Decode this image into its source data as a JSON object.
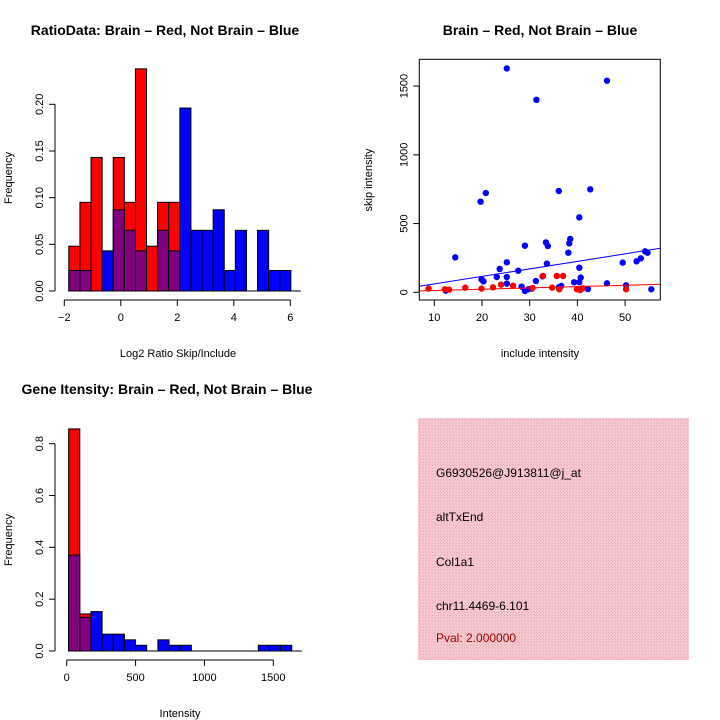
{
  "colors": {
    "red": "#ff0000",
    "blue": "#0000ff",
    "overlap": "#800080",
    "panel": "#f3c3cc",
    "pval": "#990000"
  },
  "chart_data": [
    {
      "type": "bar",
      "title": "RatioData: Brain – Red, Not Brain – Blue",
      "xlabel": "Log2 Ratio Skip/Include",
      "ylabel": "Frequency",
      "xlim": [
        -2,
        6
      ],
      "ylim": [
        0,
        0.24
      ],
      "xticks": [
        "−2",
        "0",
        "2",
        "4",
        "6"
      ],
      "xtick_values": [
        -2,
        0,
        2,
        4,
        6
      ],
      "yticks": [
        "0.00",
        "0.05",
        "0.10",
        "0.15",
        "0.20"
      ],
      "ytick_values": [
        0,
        0.05,
        0.1,
        0.15,
        0.2
      ],
      "bin_start": -1.84,
      "bin_width": 0.393,
      "series": [
        {
          "name": "Brain",
          "color": "red",
          "values": [
            0.048,
            0.095,
            0.143,
            0,
            0.143,
            0.095,
            0.238,
            0.048,
            0.095,
            0.095,
            0,
            0,
            0,
            0,
            0,
            0,
            0,
            0,
            0,
            0
          ]
        },
        {
          "name": "Not Brain",
          "color": "blue",
          "values": [
            0.022,
            0.022,
            0,
            0.043,
            0.087,
            0.065,
            0.043,
            0,
            0.065,
            0.043,
            0.196,
            0.065,
            0.065,
            0.087,
            0.022,
            0.065,
            0,
            0.065,
            0.022,
            0.022
          ]
        }
      ]
    },
    {
      "type": "scatter",
      "title": "Brain – Red, Not Brain – Blue",
      "xlabel": "include intensity",
      "ylabel": "skip intensity",
      "xlim": [
        6.9,
        57.4
      ],
      "ylim": [
        -56,
        1695
      ],
      "xticks": [
        "10",
        "20",
        "30",
        "40",
        "50"
      ],
      "xtick_values": [
        10,
        20,
        30,
        40,
        50
      ],
      "yticks": [
        "0",
        "500",
        "1000",
        "1500"
      ],
      "ytick_values": [
        0,
        500,
        1000,
        1500
      ],
      "series": [
        {
          "name": "Not Brain",
          "color": "blue",
          "points": [
            [
              25.2,
              1628
            ],
            [
              46.2,
              1539
            ],
            [
              31.4,
              1400
            ],
            [
              36.1,
              737
            ],
            [
              42.7,
              749
            ],
            [
              19.7,
              659
            ],
            [
              20.8,
              722
            ],
            [
              40.4,
              545
            ],
            [
              14.4,
              254
            ],
            [
              29.0,
              339
            ],
            [
              33.4,
              363
            ],
            [
              33.8,
              337
            ],
            [
              38.5,
              388
            ],
            [
              38.3,
              356
            ],
            [
              38.1,
              288
            ],
            [
              33.6,
              208
            ],
            [
              25.2,
              218
            ],
            [
              23.7,
              170
            ],
            [
              27.6,
              157
            ],
            [
              23.1,
              111
            ],
            [
              25.2,
              111
            ],
            [
              19.9,
              94
            ],
            [
              20.3,
              80
            ],
            [
              25.2,
              63
            ],
            [
              31.3,
              82
            ],
            [
              32.7,
              116
            ],
            [
              40.4,
              179
            ],
            [
              40.7,
              107
            ],
            [
              39.3,
              73
            ],
            [
              40.4,
              73
            ],
            [
              36.6,
              46
            ],
            [
              36.1,
              36
            ],
            [
              42.2,
              24
            ],
            [
              46.2,
              65
            ],
            [
              49.5,
              216
            ],
            [
              50.2,
              51
            ],
            [
              52.4,
              225
            ],
            [
              53.3,
              247
            ],
            [
              54.2,
              298
            ],
            [
              54.7,
              288
            ],
            [
              55.5,
              22
            ],
            [
              12.4,
              12
            ],
            [
              28.3,
              41
            ],
            [
              29.0,
              10
            ],
            [
              29.7,
              22
            ],
            [
              30.4,
              27
            ]
          ],
          "fit_line": [
            [
              6.9,
              44
            ],
            [
              57.4,
              320
            ]
          ]
        },
        {
          "name": "Brain",
          "color": "red",
          "points": [
            [
              8.8,
              27
            ],
            [
              12.2,
              22
            ],
            [
              13.1,
              19
            ],
            [
              16.5,
              34
            ],
            [
              19.9,
              27
            ],
            [
              22.3,
              36
            ],
            [
              24.0,
              56
            ],
            [
              26.5,
              48
            ],
            [
              30.6,
              31
            ],
            [
              32.8,
              119
            ],
            [
              34.7,
              34
            ],
            [
              35.7,
              119
            ],
            [
              37.0,
              119
            ],
            [
              36.2,
              22
            ],
            [
              39.9,
              22
            ],
            [
              40.6,
              17
            ],
            [
              41.1,
              29
            ],
            [
              50.2,
              22
            ]
          ],
          "fit_line": [
            [
              6.9,
              10
            ],
            [
              57.4,
              58
            ]
          ]
        }
      ]
    },
    {
      "type": "bar",
      "title": "Gene Itensity: Brain – Red, Not Brain – Blue",
      "xlabel": "Intensity",
      "ylabel": "Frequency",
      "xlim": [
        0,
        1650
      ],
      "ylim": [
        0,
        0.86
      ],
      "xticks": [
        "0",
        "500",
        "1000",
        "1500"
      ],
      "xtick_values": [
        0,
        500,
        1000,
        1500
      ],
      "yticks": [
        "0.0",
        "0.2",
        "0.4",
        "0.6",
        "0.8"
      ],
      "ytick_values": [
        0,
        0.2,
        0.4,
        0.6,
        0.8
      ],
      "bin_start": 14,
      "bin_width": 81,
      "series": [
        {
          "name": "Brain",
          "color": "red",
          "values": [
            0.857,
            0.143,
            0,
            0,
            0,
            0,
            0,
            0,
            0,
            0,
            0,
            0,
            0,
            0,
            0,
            0,
            0,
            0,
            0,
            0
          ]
        },
        {
          "name": "Not Brain",
          "color": "blue",
          "values": [
            0.37,
            0.13,
            0.152,
            0.065,
            0.065,
            0.043,
            0.022,
            0,
            0.043,
            0.022,
            0.022,
            0,
            0,
            0,
            0,
            0,
            0,
            0.022,
            0.022,
            0.022
          ]
        }
      ]
    }
  ],
  "info_panel": {
    "probe": "G6930526@J913811@j_at",
    "event_type": "altTxEnd",
    "gene": "Col1a1",
    "location": "chr11.4469-6.101",
    "pval": "Pval: 2.000000"
  }
}
